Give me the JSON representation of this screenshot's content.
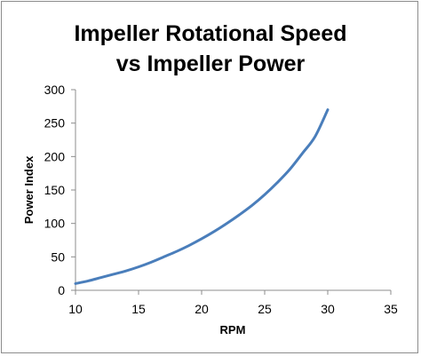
{
  "chart_data": {
    "type": "line",
    "title_lines": [
      "Impeller Rotational Speed",
      "vs Impeller Power"
    ],
    "xlabel": "RPM",
    "ylabel": "Power Index",
    "xlim": [
      10,
      35
    ],
    "ylim": [
      0,
      300
    ],
    "x_ticks": [
      10,
      15,
      20,
      25,
      30,
      35
    ],
    "y_ticks": [
      0,
      50,
      100,
      150,
      200,
      250,
      300
    ],
    "grid": false,
    "legend": "none",
    "series": [
      {
        "color": "#4a7ebb",
        "x": [
          10,
          11,
          12,
          13,
          14,
          15,
          16,
          17,
          18,
          19,
          20,
          21,
          22,
          23,
          24,
          25,
          26,
          27,
          28,
          29,
          30
        ],
        "y": [
          10,
          14,
          19,
          24,
          29,
          35,
          42,
          50,
          58,
          67,
          77,
          88,
          100,
          113,
          127,
          143,
          161,
          181,
          205,
          230,
          270
        ]
      }
    ]
  }
}
